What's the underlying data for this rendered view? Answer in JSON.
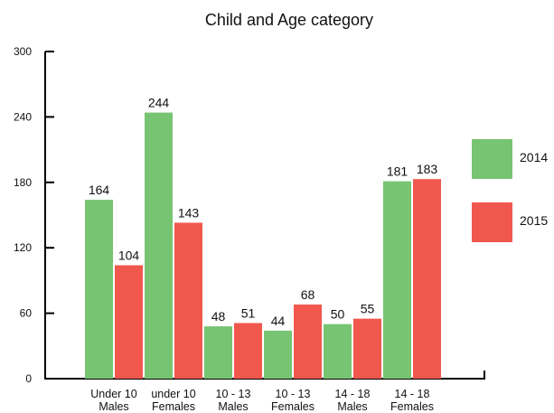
{
  "chart_data": {
    "type": "bar",
    "title": "Child and Age category",
    "categories": [
      [
        "Under 10",
        "Males"
      ],
      [
        "under 10",
        "Females"
      ],
      [
        "10 - 13",
        "Males"
      ],
      [
        "10 - 13",
        "Females"
      ],
      [
        "14 - 18",
        "Males"
      ],
      [
        "14 - 18",
        "Females"
      ]
    ],
    "bars": [
      {
        "category": 0,
        "series": "2014",
        "value": 164
      },
      {
        "category": 0,
        "series": "2015",
        "value": 104
      },
      {
        "category": 1,
        "series": "2014",
        "value": 244
      },
      {
        "category": 1,
        "series": "2015",
        "value": 143
      },
      {
        "category": 2,
        "series": "2014",
        "value": 48
      },
      {
        "category": 2,
        "series": "2015",
        "value": 51
      },
      {
        "category": 3,
        "series": "2014",
        "value": 44
      },
      {
        "category": 3,
        "series": "2015",
        "value": 68
      },
      {
        "category": 4,
        "series": "2014",
        "value": 50
      },
      {
        "category": 4,
        "series": "2015",
        "value": 55
      },
      {
        "category": 5,
        "series": "2014",
        "value": 181
      },
      {
        "category": 5,
        "series": "2015",
        "value": 183
      }
    ],
    "series": [
      {
        "name": "2014",
        "color": "#77c472"
      },
      {
        "name": "2015",
        "color": "#f0584e"
      }
    ],
    "yticks": [
      0,
      60,
      120,
      180,
      240,
      300
    ],
    "ylim": [
      0,
      300
    ],
    "grid": false,
    "legend_position": "right"
  }
}
